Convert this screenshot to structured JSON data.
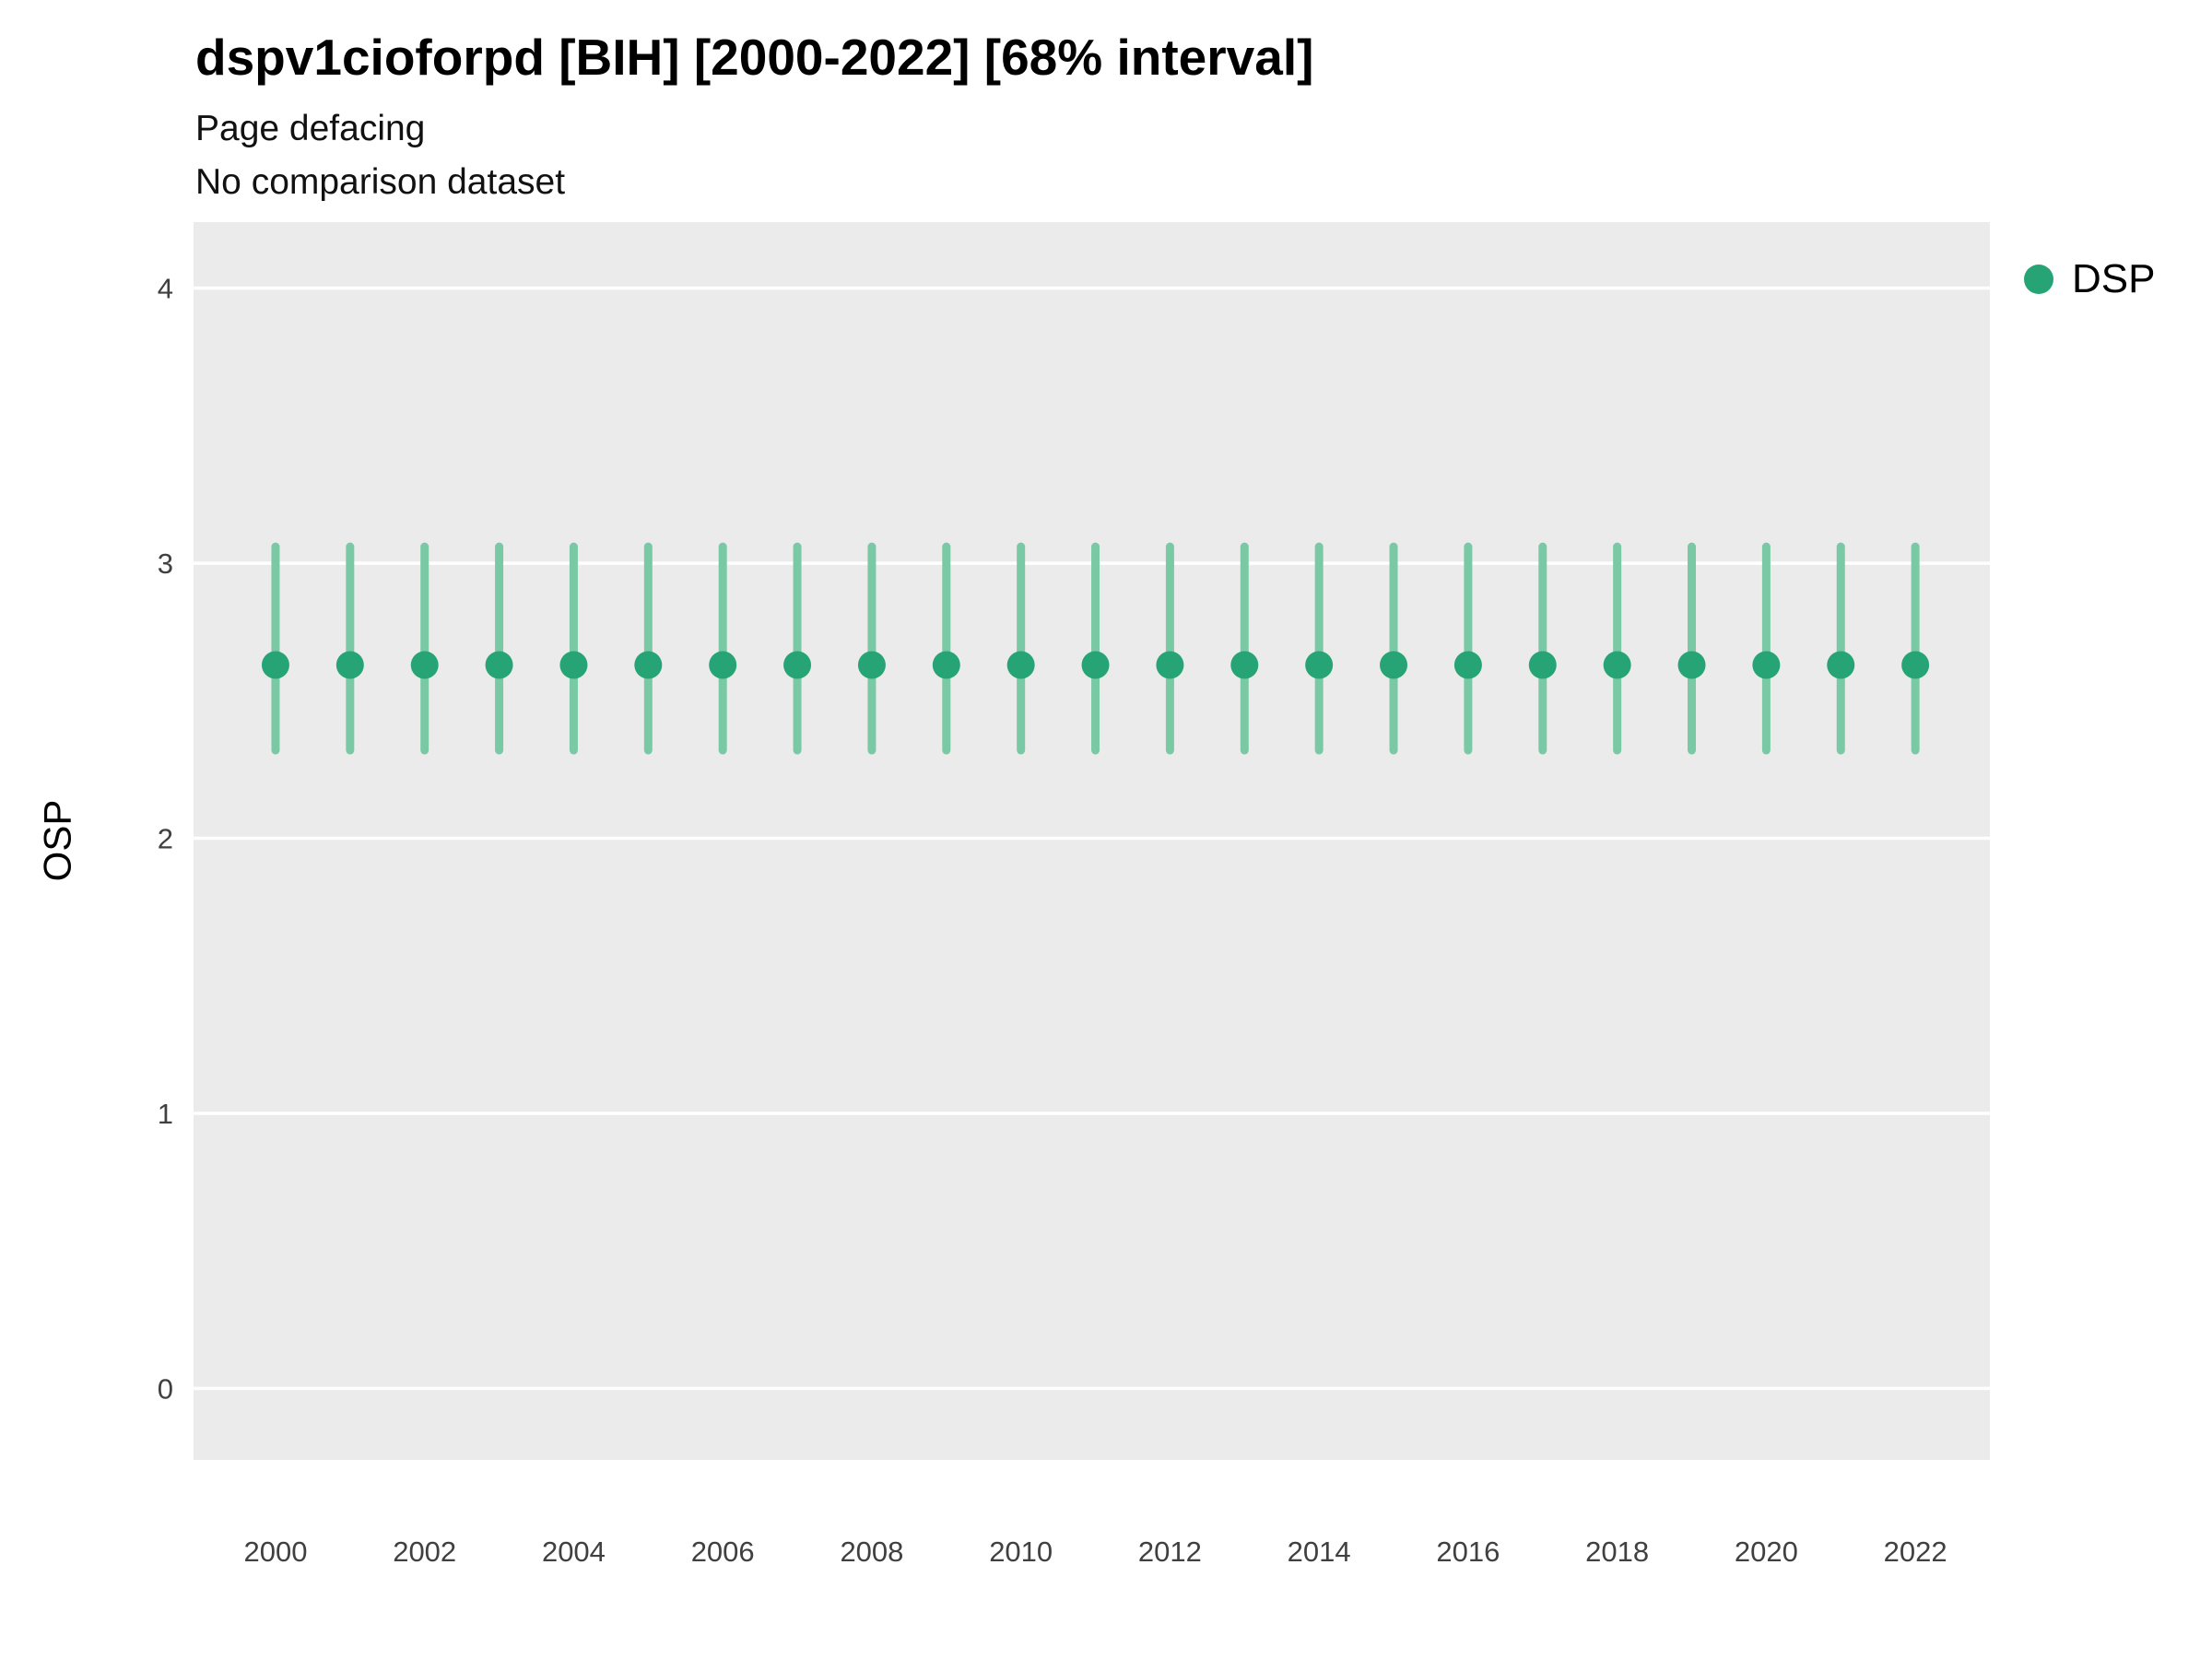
{
  "chart_data": {
    "type": "scatter",
    "title": "dspv1cioforpd [BIH] [2000-2022] [68% interval]",
    "subtitle": "Page defacing",
    "note": "No comparison dataset",
    "xlabel": "",
    "ylabel": "OSP",
    "x": [
      2000,
      2001,
      2002,
      2003,
      2004,
      2005,
      2006,
      2007,
      2008,
      2009,
      2010,
      2011,
      2012,
      2013,
      2014,
      2015,
      2016,
      2017,
      2018,
      2019,
      2020,
      2021,
      2022
    ],
    "series": [
      {
        "name": "DSP",
        "values": [
          2.63,
          2.63,
          2.63,
          2.63,
          2.63,
          2.63,
          2.63,
          2.63,
          2.63,
          2.63,
          2.63,
          2.63,
          2.63,
          2.63,
          2.63,
          2.63,
          2.63,
          2.63,
          2.63,
          2.63,
          2.63,
          2.63,
          2.63
        ],
        "lower": [
          2.32,
          2.32,
          2.32,
          2.32,
          2.32,
          2.32,
          2.32,
          2.32,
          2.32,
          2.32,
          2.32,
          2.32,
          2.32,
          2.32,
          2.32,
          2.32,
          2.32,
          2.32,
          2.32,
          2.32,
          2.32,
          2.32,
          2.32
        ],
        "upper": [
          3.06,
          3.06,
          3.06,
          3.06,
          3.06,
          3.06,
          3.06,
          3.06,
          3.06,
          3.06,
          3.06,
          3.06,
          3.06,
          3.06,
          3.06,
          3.06,
          3.06,
          3.06,
          3.06,
          3.06,
          3.06,
          3.06,
          3.06
        ]
      }
    ],
    "interval_label": "68% interval",
    "ylim": [
      -0.26,
      4.24
    ],
    "xlim": [
      1998.9,
      2023.0
    ],
    "yticks": [
      0,
      1,
      2,
      3,
      4
    ],
    "xticks": [
      2000,
      2002,
      2004,
      2006,
      2008,
      2010,
      2012,
      2014,
      2016,
      2018,
      2020,
      2022
    ],
    "grid": "horizontal-major",
    "legend_position": "right",
    "legend": [
      {
        "label": "DSP",
        "color": "#27A476"
      }
    ],
    "colors": {
      "point": "#27A476",
      "interval": "#79C9A5",
      "panel": "#EBEBEB",
      "gridline": "#FFFFFF",
      "tick_label": "#404040"
    }
  }
}
